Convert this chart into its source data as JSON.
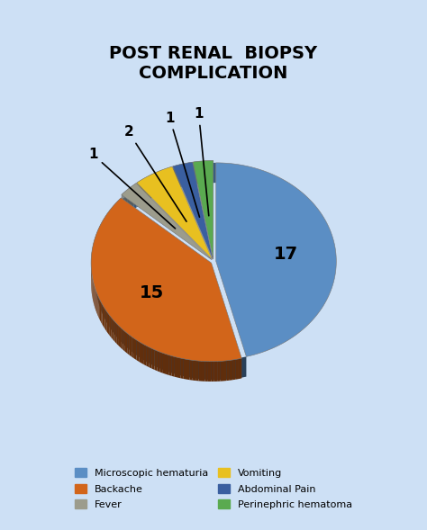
{
  "title": "POST RENAL  BIOPSY\nCOMPLICATION",
  "values": [
    17,
    15,
    1,
    2,
    1,
    1
  ],
  "labels": [
    "17",
    "15",
    "1",
    "2",
    "1",
    "1"
  ],
  "legend_labels": [
    "Microscopic hematuria",
    "Backache",
    "Fever",
    "Vomiting",
    "Abdominal Pain",
    "Perinephric hematoma"
  ],
  "colors": [
    "#5b8ec4",
    "#d2651a",
    "#9c9c8c",
    "#e8c020",
    "#3a5fa0",
    "#5aaa50"
  ],
  "background_color": "#cde0f5",
  "title_fontsize": 14,
  "startangle": 90,
  "depth": 0.12
}
